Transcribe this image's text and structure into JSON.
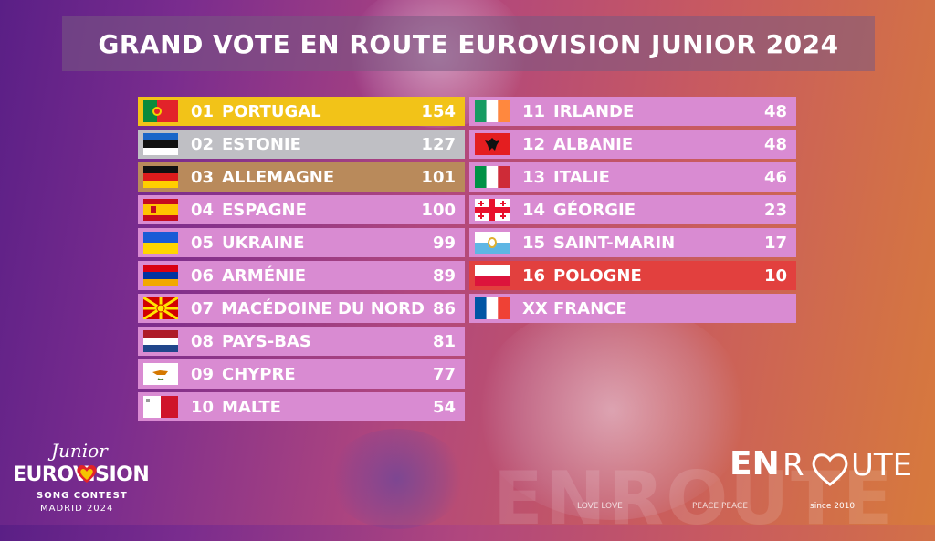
{
  "title": "GRAND VOTE EN ROUTE EUROVISION JUNIOR 2024",
  "colors": {
    "gold": "#f2c318",
    "silver": "#bfbfc4",
    "bronze": "#b98a5b",
    "default": "#d98bd2",
    "last": "#e2403e"
  },
  "left_column": [
    {
      "num": "01",
      "country": "PORTUGAL",
      "score": "154",
      "flag": "portugal-flag-icon",
      "tier": "gold"
    },
    {
      "num": "02",
      "country": "ESTONIE",
      "score": "127",
      "flag": "estonia-flag-icon",
      "tier": "silver"
    },
    {
      "num": "03",
      "country": "ALLEMAGNE",
      "score": "101",
      "flag": "germany-flag-icon",
      "tier": "bronze"
    },
    {
      "num": "04",
      "country": "ESPAGNE",
      "score": "100",
      "flag": "spain-flag-icon",
      "tier": "default"
    },
    {
      "num": "05",
      "country": "UKRAINE",
      "score": "99",
      "flag": "ukraine-flag-icon",
      "tier": "default"
    },
    {
      "num": "06",
      "country": "ARMÉNIE",
      "score": "89",
      "flag": "armenia-flag-icon",
      "tier": "default"
    },
    {
      "num": "07",
      "country": "MACÉDOINE DU NORD",
      "score": "86",
      "flag": "north-macedonia-flag-icon",
      "tier": "default"
    },
    {
      "num": "08",
      "country": "PAYS-BAS",
      "score": "81",
      "flag": "netherlands-flag-icon",
      "tier": "default"
    },
    {
      "num": "09",
      "country": "CHYPRE",
      "score": "77",
      "flag": "cyprus-flag-icon",
      "tier": "default"
    },
    {
      "num": "10",
      "country": "MALTE",
      "score": "54",
      "flag": "malta-flag-icon",
      "tier": "default"
    }
  ],
  "right_column": [
    {
      "num": "11",
      "country": "IRLANDE",
      "score": "48",
      "flag": "ireland-flag-icon",
      "tier": "default"
    },
    {
      "num": "12",
      "country": "ALBANIE",
      "score": "48",
      "flag": "albania-flag-icon",
      "tier": "default"
    },
    {
      "num": "13",
      "country": "ITALIE",
      "score": "46",
      "flag": "italy-flag-icon",
      "tier": "default"
    },
    {
      "num": "14",
      "country": "GÉORGIE",
      "score": "23",
      "flag": "georgia-flag-icon",
      "tier": "default"
    },
    {
      "num": "15",
      "country": "SAINT-MARIN",
      "score": "17",
      "flag": "san-marino-flag-icon",
      "tier": "default"
    },
    {
      "num": "16",
      "country": "POLOGNE",
      "score": "10",
      "flag": "poland-flag-icon",
      "tier": "last"
    },
    {
      "num": "XX",
      "country": "FRANCE",
      "score": "",
      "flag": "france-flag-icon",
      "tier": "default"
    }
  ],
  "logo_left": {
    "line1": "Junior",
    "line2": "EUROVISION",
    "line3": "SONG CONTEST",
    "line4": "MADRID 2024"
  },
  "logo_right": {
    "brand_en": "EN",
    "brand_r": "R",
    "brand_ute": "UTE",
    "since": "since 2010"
  },
  "watermark": {
    "text": "ENROUTE",
    "tag1": "LOVE LOVE",
    "tag2": "PEACE PEACE"
  }
}
